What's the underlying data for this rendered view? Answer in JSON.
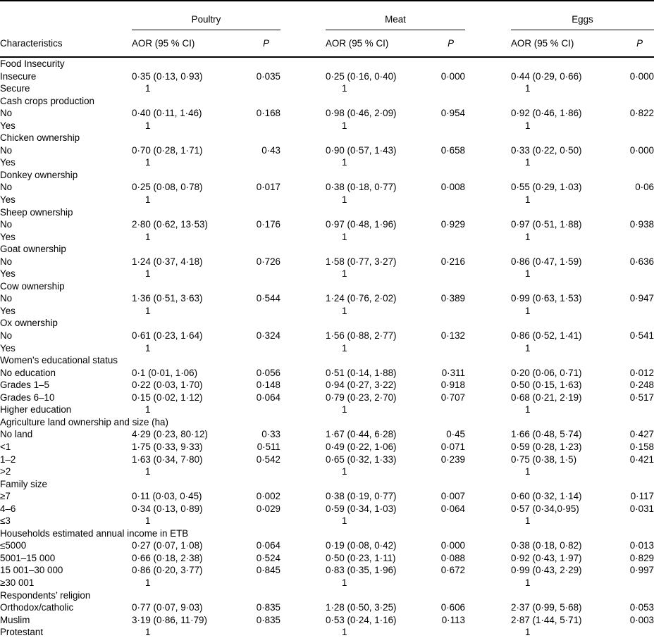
{
  "table": {
    "char_header": "Characteristics",
    "groups": [
      {
        "label": "Poultry"
      },
      {
        "label": "Meat"
      },
      {
        "label": "Eggs"
      }
    ],
    "subheaders": {
      "aor": "AOR (95 % CI)",
      "p": "P"
    },
    "text_color": "#000000",
    "background_color": "#ffffff",
    "rows": [
      {
        "type": "category",
        "label": "Food Insecurity"
      },
      {
        "type": "item",
        "label": "Insecure",
        "poultry": {
          "aor": "0·35 (0·13, 0·93)",
          "p": "0·035"
        },
        "meat": {
          "aor": "0·25 (0·16, 0·40)",
          "p": "0·000"
        },
        "eggs": {
          "aor": "0·44 (0·29, 0·66)",
          "p": "0·000"
        }
      },
      {
        "type": "item",
        "label": "Secure",
        "poultry": {
          "aor": "1",
          "p": ""
        },
        "meat": {
          "aor": "1",
          "p": ""
        },
        "eggs": {
          "aor": "1",
          "p": ""
        }
      },
      {
        "type": "category",
        "label": "Cash crops production"
      },
      {
        "type": "item",
        "label": "No",
        "poultry": {
          "aor": "0·40 (0·11, 1·46)",
          "p": "0·168"
        },
        "meat": {
          "aor": "0·98 (0·46, 2·09)",
          "p": "0·954"
        },
        "eggs": {
          "aor": "0·92 (0·46, 1·86)",
          "p": "0·822"
        }
      },
      {
        "type": "item",
        "label": "Yes",
        "poultry": {
          "aor": "1",
          "p": ""
        },
        "meat": {
          "aor": "1",
          "p": ""
        },
        "eggs": {
          "aor": "1",
          "p": ""
        }
      },
      {
        "type": "category",
        "label": "Chicken ownership"
      },
      {
        "type": "item",
        "label": "No",
        "poultry": {
          "aor": "0·70 (0·28, 1·71)",
          "p": "0·43"
        },
        "meat": {
          "aor": "0·90 (0·57, 1·43)",
          "p": "0·658"
        },
        "eggs": {
          "aor": "0·33 (0·22, 0·50)",
          "p": "0·000"
        }
      },
      {
        "type": "item",
        "label": "Yes",
        "poultry": {
          "aor": "1",
          "p": ""
        },
        "meat": {
          "aor": "1",
          "p": ""
        },
        "eggs": {
          "aor": "1",
          "p": ""
        }
      },
      {
        "type": "category",
        "label": "Donkey ownership"
      },
      {
        "type": "item",
        "label": "No",
        "poultry": {
          "aor": "0·25 (0·08, 0·78)",
          "p": "0·017"
        },
        "meat": {
          "aor": "0·38 (0·18, 0·77)",
          "p": "0·008"
        },
        "eggs": {
          "aor": "0·55 (0·29, 1·03)",
          "p": "0·06"
        }
      },
      {
        "type": "item",
        "label": "Yes",
        "poultry": {
          "aor": "1",
          "p": ""
        },
        "meat": {
          "aor": "1",
          "p": ""
        },
        "eggs": {
          "aor": "1",
          "p": ""
        }
      },
      {
        "type": "category",
        "label": "Sheep ownership"
      },
      {
        "type": "item",
        "label": "No",
        "poultry": {
          "aor": "2·80 (0·62, 13·53)",
          "p": "0·176"
        },
        "meat": {
          "aor": "0·97 (0·48, 1·96)",
          "p": "0·929"
        },
        "eggs": {
          "aor": "0·97 (0·51, 1·88)",
          "p": "0·938"
        }
      },
      {
        "type": "item",
        "label": "Yes",
        "poultry": {
          "aor": "1",
          "p": ""
        },
        "meat": {
          "aor": "1",
          "p": ""
        },
        "eggs": {
          "aor": "1",
          "p": ""
        }
      },
      {
        "type": "category",
        "label": "Goat ownership"
      },
      {
        "type": "item",
        "label": "No",
        "poultry": {
          "aor": "1·24 (0·37, 4·18)",
          "p": "0·726"
        },
        "meat": {
          "aor": "1·58 (0·77, 3·27)",
          "p": "0·216"
        },
        "eggs": {
          "aor": "0·86 (0·47, 1·59)",
          "p": "0·636"
        }
      },
      {
        "type": "item",
        "label": "Yes",
        "poultry": {
          "aor": "1",
          "p": ""
        },
        "meat": {
          "aor": "1",
          "p": ""
        },
        "eggs": {
          "aor": "1",
          "p": ""
        }
      },
      {
        "type": "category",
        "label": "Cow ownership"
      },
      {
        "type": "item",
        "label": "No",
        "poultry": {
          "aor": "1·36 (0·51, 3·63)",
          "p": "0·544"
        },
        "meat": {
          "aor": "1·24 (0·76, 2·02)",
          "p": "0·389"
        },
        "eggs": {
          "aor": "0·99 (0·63, 1·53)",
          "p": "0·947"
        }
      },
      {
        "type": "item",
        "label": "Yes",
        "poultry": {
          "aor": "1",
          "p": ""
        },
        "meat": {
          "aor": "1",
          "p": ""
        },
        "eggs": {
          "aor": "1",
          "p": ""
        }
      },
      {
        "type": "category",
        "label": "Ox ownership"
      },
      {
        "type": "item",
        "label": "No",
        "poultry": {
          "aor": "0·61 (0·23, 1·64)",
          "p": "0·324"
        },
        "meat": {
          "aor": "1·56 (0·88, 2·77)",
          "p": "0·132"
        },
        "eggs": {
          "aor": "0·86 (0·52, 1·41)",
          "p": "0·541"
        }
      },
      {
        "type": "item",
        "label": "Yes",
        "poultry": {
          "aor": "1",
          "p": ""
        },
        "meat": {
          "aor": "1",
          "p": ""
        },
        "eggs": {
          "aor": "1",
          "p": ""
        }
      },
      {
        "type": "category",
        "label": "Women’s educational status"
      },
      {
        "type": "item",
        "label": "No education",
        "poultry": {
          "aor": "0·1 (0·01, 1·06)",
          "p": "0·056"
        },
        "meat": {
          "aor": "0·51 (0·14, 1·88)",
          "p": "0·311"
        },
        "eggs": {
          "aor": "0·20 (0·06, 0·71)",
          "p": "0·012"
        }
      },
      {
        "type": "item",
        "label": "Grades 1–5",
        "poultry": {
          "aor": "0·22 (0·03, 1·70)",
          "p": "0·148"
        },
        "meat": {
          "aor": "0·94 (0·27, 3·22)",
          "p": "0·918"
        },
        "eggs": {
          "aor": "0·50 (0·15, 1·63)",
          "p": "0·248"
        }
      },
      {
        "type": "item",
        "label": "Grades 6–10",
        "poultry": {
          "aor": "0·15 (0·02, 1·12)",
          "p": "0·064"
        },
        "meat": {
          "aor": "0·79 (0·23, 2·70)",
          "p": "0·707"
        },
        "eggs": {
          "aor": "0·68 (0·21, 2·19)",
          "p": "0·517"
        }
      },
      {
        "type": "item",
        "label": "Higher education",
        "poultry": {
          "aor": "1",
          "p": ""
        },
        "meat": {
          "aor": "1",
          "p": ""
        },
        "eggs": {
          "aor": "1",
          "p": ""
        }
      },
      {
        "type": "category",
        "label": "Agriculture land ownership and size (ha)"
      },
      {
        "type": "item",
        "label": "No land",
        "poultry": {
          "aor": "4·29 (0·23, 80·12)",
          "p": "0·33"
        },
        "meat": {
          "aor": "1·67 (0·44, 6·28)",
          "p": "0·45"
        },
        "eggs": {
          "aor": "1·66 (0·48, 5·74)",
          "p": "0·427"
        }
      },
      {
        "type": "item",
        "label": "<1",
        "poultry": {
          "aor": "1·75 (0·33, 9·33)",
          "p": "0·511"
        },
        "meat": {
          "aor": "0·49 (0·22, 1·06)",
          "p": "0·071"
        },
        "eggs": {
          "aor": "0·59 (0·28, 1·23)",
          "p": "0·158"
        }
      },
      {
        "type": "item",
        "label": "1–2",
        "poultry": {
          "aor": "1·63 (0·34, 7·80)",
          "p": "0·542"
        },
        "meat": {
          "aor": "0·65 (0·32, 1·33)",
          "p": "0·239"
        },
        "eggs": {
          "aor": "0·75 (0·38, 1·5)",
          "p": "0·421"
        }
      },
      {
        "type": "item",
        "label": ">2",
        "poultry": {
          "aor": "1",
          "p": ""
        },
        "meat": {
          "aor": "1",
          "p": ""
        },
        "eggs": {
          "aor": "1",
          "p": ""
        }
      },
      {
        "type": "category",
        "label": "Family size"
      },
      {
        "type": "item",
        "label": "≥7",
        "poultry": {
          "aor": "0·11 (0·03, 0·45)",
          "p": "0·002"
        },
        "meat": {
          "aor": "0·38 (0·19, 0·77)",
          "p": "0·007"
        },
        "eggs": {
          "aor": "0·60 (0·32, 1·14)",
          "p": "0·117"
        }
      },
      {
        "type": "item",
        "label": "4–6",
        "poultry": {
          "aor": "0·34 (0·13, 0·89)",
          "p": "0·029"
        },
        "meat": {
          "aor": "0·59 (0·34, 1·03)",
          "p": "0·064"
        },
        "eggs": {
          "aor": "0·57 (0·34,0·95)",
          "p": "0·031"
        }
      },
      {
        "type": "item",
        "label": "≤3",
        "poultry": {
          "aor": "1",
          "p": ""
        },
        "meat": {
          "aor": "1",
          "p": ""
        },
        "eggs": {
          "aor": "1",
          "p": ""
        }
      },
      {
        "type": "category",
        "label": "Households estimated annual income in ETB"
      },
      {
        "type": "item",
        "label": "≤5000",
        "poultry": {
          "aor": "0·27 (0·07, 1·08)",
          "p": "0·064"
        },
        "meat": {
          "aor": "0·19 (0·08, 0·42)",
          "p": "0·000"
        },
        "eggs": {
          "aor": "0·38 (0·18, 0·82)",
          "p": "0·013"
        }
      },
      {
        "type": "item",
        "label": "5001–15 000",
        "poultry": {
          "aor": "0·66 (0·18, 2·38)",
          "p": "0·524"
        },
        "meat": {
          "aor": "0·50 (0·23, 1·11)",
          "p": "0·088"
        },
        "eggs": {
          "aor": "0·92 (0·43, 1·97)",
          "p": "0·829"
        }
      },
      {
        "type": "item",
        "label": "15 001–30 000",
        "poultry": {
          "aor": "0·86 (0·20, 3·77)",
          "p": "0·845"
        },
        "meat": {
          "aor": "0·83 (0·35, 1·96)",
          "p": "0·672"
        },
        "eggs": {
          "aor": "0·99 (0·43, 2·29)",
          "p": "0·997"
        }
      },
      {
        "type": "item",
        "label": "≥30 001",
        "poultry": {
          "aor": "1",
          "p": ""
        },
        "meat": {
          "aor": "1",
          "p": ""
        },
        "eggs": {
          "aor": "1",
          "p": ""
        }
      },
      {
        "type": "category",
        "label": "Respondents’ religion"
      },
      {
        "type": "item",
        "label": "Orthodox/catholic",
        "poultry": {
          "aor": "0·77 (0·07, 9·03)",
          "p": "0·835"
        },
        "meat": {
          "aor": "1·28 (0·50, 3·25)",
          "p": "0·606"
        },
        "eggs": {
          "aor": "2·37 (0·99, 5·68)",
          "p": "0·053"
        }
      },
      {
        "type": "item",
        "label": "Muslim",
        "poultry": {
          "aor": "3·19 (0·86, 11·79)",
          "p": "0·835"
        },
        "meat": {
          "aor": "0·53 (0·24, 1·16)",
          "p": "0·113"
        },
        "eggs": {
          "aor": "2·87 (1·44, 5·71)",
          "p": "0·003"
        }
      },
      {
        "type": "item",
        "label": "Protestant",
        "poultry": {
          "aor": "1",
          "p": ""
        },
        "meat": {
          "aor": "1",
          "p": ""
        },
        "eggs": {
          "aor": "1",
          "p": ""
        }
      }
    ]
  }
}
